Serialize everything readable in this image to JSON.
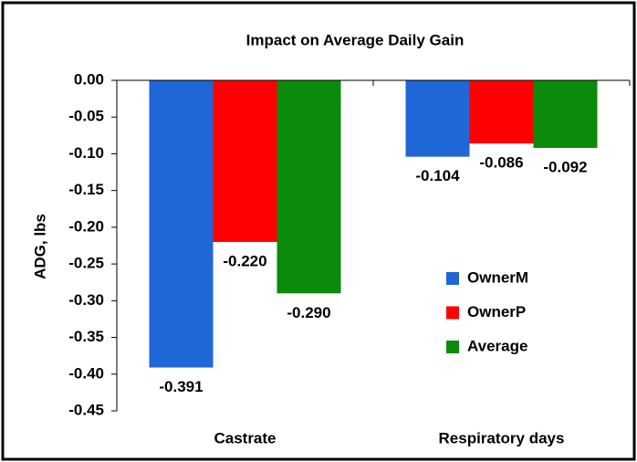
{
  "chart_data": {
    "type": "bar",
    "title": "Impact on Average Daily Gain",
    "y_label": "ADG, lbs",
    "categories": [
      "Castrate",
      "Respiratory days"
    ],
    "series": [
      {
        "name": "OwnerM",
        "color": "#1f66d6",
        "values": [
          -0.391,
          -0.104
        ],
        "value_labels": [
          "-0.391",
          "-0.104"
        ]
      },
      {
        "name": "OwnerP",
        "color": "#ff0000",
        "values": [
          -0.22,
          -0.086
        ],
        "value_labels": [
          "-0.220",
          "-0.086"
        ]
      },
      {
        "name": "Average",
        "color": "#0b8a0b",
        "values": [
          -0.29,
          -0.092
        ],
        "value_labels": [
          "-0.290",
          "-0.092"
        ]
      }
    ],
    "ylim": [
      -0.45,
      0
    ],
    "yticks": [
      {
        "value": 0,
        "label": "0.00"
      },
      {
        "value": -0.05,
        "label": "-0.05"
      },
      {
        "value": -0.1,
        "label": "-0.10"
      },
      {
        "value": -0.15,
        "label": "-0.15"
      },
      {
        "value": -0.2,
        "label": "-0.20"
      },
      {
        "value": -0.25,
        "label": "-0.25"
      },
      {
        "value": -0.3,
        "label": "-0.30"
      },
      {
        "value": -0.35,
        "label": "-0.35"
      },
      {
        "value": -0.4,
        "label": "-0.40"
      },
      {
        "value": -0.45,
        "label": "-0.45"
      }
    ],
    "grid": false
  }
}
